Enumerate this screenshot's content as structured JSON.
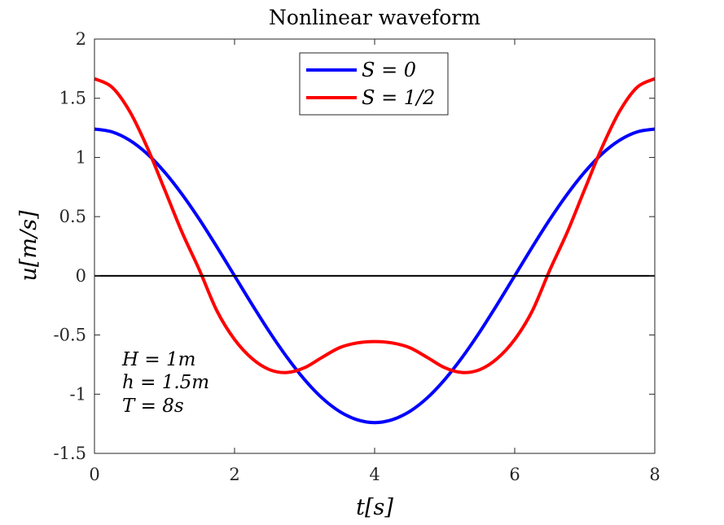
{
  "chart_data": {
    "type": "line",
    "title": "Nonlinear waveform",
    "xlabel": "t[s]",
    "ylabel": "u[m/s]",
    "xlim": [
      0,
      8
    ],
    "ylim": [
      -1.5,
      2
    ],
    "xticks": [
      0,
      2,
      4,
      6,
      8
    ],
    "xtick_labels": [
      "0",
      "2",
      "4",
      "6",
      "8"
    ],
    "yticks": [
      -1.5,
      -1,
      -0.5,
      0,
      0.5,
      1,
      1.5,
      2
    ],
    "ytick_labels": [
      "-1.5",
      "-1",
      "-0.5",
      "0",
      "0.5",
      "1",
      "1.5",
      "2"
    ],
    "grid": false,
    "legend_position": "top-center",
    "series": [
      {
        "name": "S = 0",
        "color": "#0000ff",
        "x": [
          0,
          0.25,
          0.5,
          0.75,
          1.0,
          1.25,
          1.5,
          1.75,
          2.0,
          2.25,
          2.5,
          2.75,
          3.0,
          3.25,
          3.5,
          3.75,
          4.0,
          4.25,
          4.5,
          4.75,
          5.0,
          5.25,
          5.5,
          5.75,
          6.0,
          6.25,
          6.5,
          6.75,
          7.0,
          7.25,
          7.5,
          7.75,
          8.0
        ],
        "y": [
          1.24,
          1.216,
          1.146,
          1.032,
          0.877,
          0.689,
          0.475,
          0.242,
          0.0,
          -0.242,
          -0.475,
          -0.689,
          -0.877,
          -1.032,
          -1.146,
          -1.216,
          -1.24,
          -1.216,
          -1.146,
          -1.032,
          -0.877,
          -0.689,
          -0.475,
          -0.242,
          0.0,
          0.242,
          0.475,
          0.689,
          0.877,
          1.032,
          1.146,
          1.216,
          1.24
        ]
      },
      {
        "name": "S = 1/2",
        "color": "#ff0000",
        "x": [
          0,
          0.25,
          0.5,
          0.75,
          1.0,
          1.25,
          1.5,
          1.75,
          2.0,
          2.25,
          2.5,
          2.75,
          3.0,
          3.25,
          3.5,
          3.75,
          4.0,
          4.25,
          4.5,
          4.75,
          5.0,
          5.25,
          5.5,
          5.75,
          6.0,
          6.25,
          6.5,
          6.75,
          7.0,
          7.25,
          7.5,
          7.75,
          8.0
        ],
        "y": [
          1.665,
          1.594,
          1.392,
          1.089,
          0.731,
          0.368,
          0.047,
          -0.298,
          -0.538,
          -0.699,
          -0.793,
          -0.817,
          -0.776,
          -0.689,
          -0.607,
          -0.567,
          -0.555,
          -0.567,
          -0.607,
          -0.689,
          -0.776,
          -0.817,
          -0.793,
          -0.699,
          -0.538,
          -0.298,
          0.047,
          0.368,
          0.731,
          1.089,
          1.392,
          1.594,
          1.665
        ]
      }
    ],
    "annotations": [
      "H = 1m",
      "h = 1.5m",
      "T = 8s"
    ]
  }
}
